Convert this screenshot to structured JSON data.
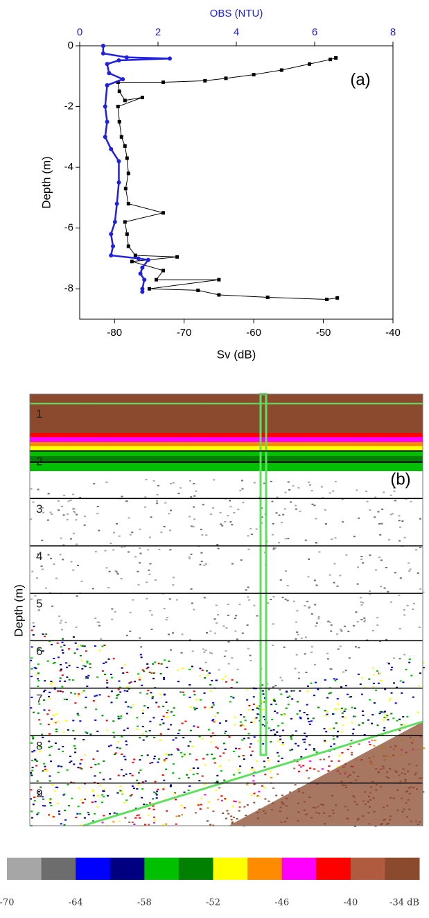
{
  "chart_data": [
    {
      "type": "profile",
      "annotation": "(a)",
      "xlabel": "Sv (dB)",
      "x2label": "OBS (NTU)",
      "ylabel": "Depth (m)",
      "xlim": [
        -85,
        -40
      ],
      "xticks": [
        -80,
        -70,
        -60,
        -50,
        -40
      ],
      "x2lim": [
        0,
        8
      ],
      "x2ticks": [
        0,
        2,
        4,
        6,
        8
      ],
      "x2color": "#1f1fe0",
      "ylim": [
        -9,
        0
      ],
      "yticks": [
        0,
        -2,
        -4,
        -6,
        -8
      ],
      "series": [
        {
          "color": "#000000",
          "marker": "square",
          "x": [
            -48.2,
            -49,
            -52,
            -56,
            -60,
            -64,
            -67,
            -73,
            -79.5,
            -79.3,
            -78.5,
            -76,
            -79.5,
            -79.3,
            -79,
            -78.5,
            -78.2,
            -78,
            -78.4,
            -78,
            -73,
            -78.5,
            -78.2,
            -78,
            -77,
            -71,
            -77.5,
            -73,
            -74,
            -65,
            -75,
            -68,
            -65,
            -58,
            -49.5,
            -48
          ],
          "y": [
            -0.4,
            -0.45,
            -0.6,
            -0.8,
            -0.95,
            -1.07,
            -1.15,
            -1.2,
            -1.2,
            -1.5,
            -1.8,
            -1.7,
            -2,
            -2.5,
            -3,
            -3.3,
            -3.7,
            -4.2,
            -4.7,
            -5.2,
            -5.5,
            -5.8,
            -6.2,
            -6.6,
            -6.9,
            -6.95,
            -7.1,
            -7.4,
            -7.7,
            -7.7,
            -8,
            -8.05,
            -8.2,
            -8.28,
            -8.35,
            -8.3
          ]
        },
        {
          "color": "#1f1fe0",
          "marker": "circle",
          "axis": "x2",
          "x": [
            0.6,
            0.6,
            1.2,
            2.3,
            1.0,
            0.7,
            0.75,
            1.1,
            0.7,
            0.65,
            0.7,
            0.65,
            0.8,
            1.0,
            1.0,
            0.95,
            0.9,
            0.8,
            0.85,
            0.8,
            1.5,
            1.75,
            1.6,
            1.55,
            1.65,
            1.6,
            1.6
          ],
          "y": [
            0,
            -0.25,
            -0.38,
            -0.42,
            -0.48,
            -0.6,
            -0.9,
            -1.1,
            -1.3,
            -2,
            -2.5,
            -3,
            -3.4,
            -3.8,
            -4.5,
            -5.2,
            -5.8,
            -6.2,
            -6.6,
            -6.9,
            -7.0,
            -7.05,
            -7.3,
            -7.5,
            -7.7,
            -8.0,
            -8.1
          ]
        }
      ]
    },
    {
      "type": "echogram",
      "annotation": "(b)",
      "ylabel": "Depth (m)",
      "ylim": [
        0.8,
        9.9
      ],
      "yticks": [
        1,
        2,
        3,
        4,
        5,
        6,
        7,
        8,
        9
      ],
      "colorbar": {
        "colors": [
          "#a6a6a6",
          "#6d6d6d",
          "#0000ff",
          "#000080",
          "#00c000",
          "#008000",
          "#ffff00",
          "#ff8c00",
          "#ff00ff",
          "#ff0000",
          "#b05a40",
          "#8b4a2e"
        ],
        "lim": [
          -70,
          -34
        ],
        "ticks": [
          -70,
          -64,
          -58,
          -52,
          -46,
          -40,
          {
            "value": -34,
            "label": "-34 dB"
          }
        ]
      }
    }
  ]
}
